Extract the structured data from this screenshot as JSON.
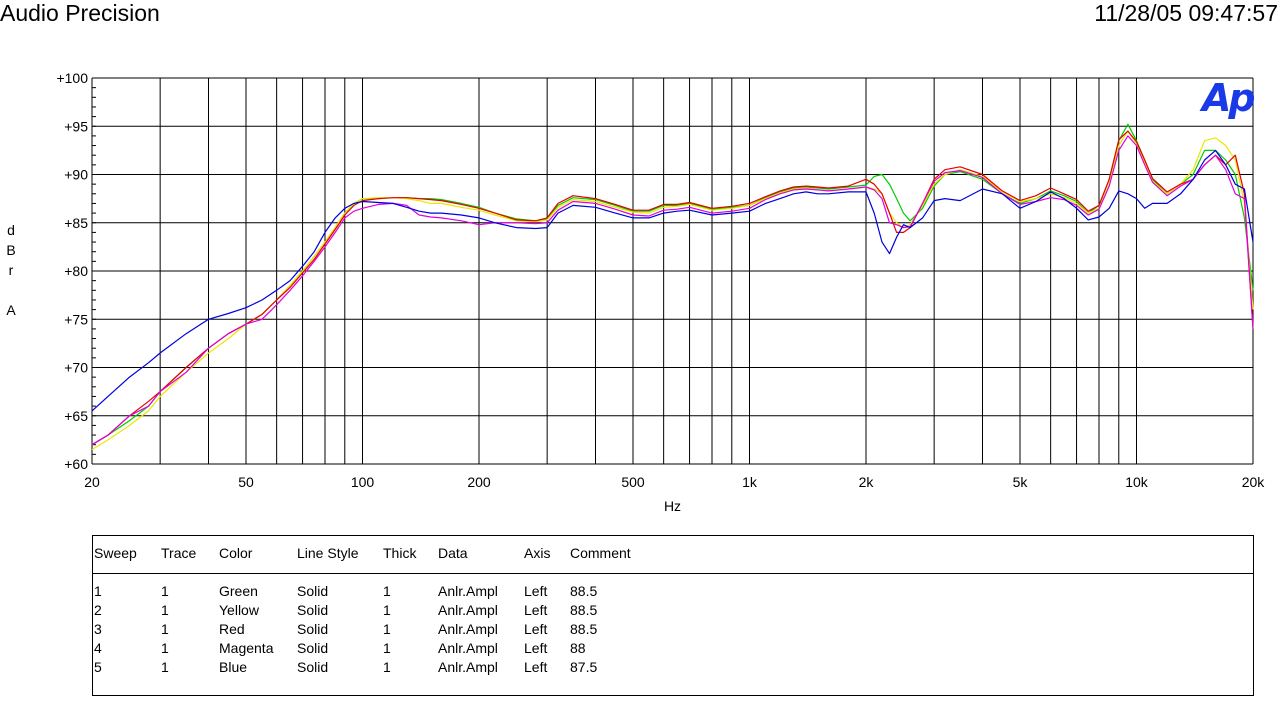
{
  "header": {
    "title": "Audio Precision",
    "timestamp": "11/28/05 09:47:57"
  },
  "chart_data": {
    "type": "line",
    "xlabel": "Hz",
    "ylabel": "dBr A",
    "xscale": "log",
    "xlim": [
      20,
      20000
    ],
    "ylim": [
      60,
      100
    ],
    "grid": true,
    "x_tick_labels": [
      "20",
      "50",
      "100",
      "200",
      "500",
      "1k",
      "2k",
      "5k",
      "10k",
      "20k"
    ],
    "x_tick_values": [
      20,
      50,
      100,
      200,
      500,
      1000,
      2000,
      5000,
      10000,
      20000
    ],
    "y_tick_labels": [
      "+60",
      "+65",
      "+70",
      "+75",
      "+80",
      "+85",
      "+90",
      "+95",
      "+100"
    ],
    "y_tick_values": [
      60,
      65,
      70,
      75,
      80,
      85,
      90,
      95,
      100
    ],
    "x": [
      20,
      22,
      25,
      28,
      30,
      35,
      40,
      45,
      50,
      55,
      60,
      65,
      70,
      75,
      80,
      85,
      90,
      95,
      100,
      110,
      120,
      130,
      140,
      150,
      160,
      180,
      200,
      220,
      250,
      280,
      300,
      320,
      350,
      400,
      450,
      500,
      550,
      600,
      650,
      700,
      800,
      900,
      1000,
      1100,
      1200,
      1300,
      1400,
      1500,
      1600,
      1800,
      2000,
      2100,
      2200,
      2300,
      2400,
      2500,
      2600,
      2800,
      3000,
      3200,
      3500,
      4000,
      4500,
      5000,
      5500,
      6000,
      6500,
      7000,
      7500,
      8000,
      8500,
      9000,
      9500,
      10000,
      10500,
      11000,
      12000,
      13000,
      14000,
      15000,
      16000,
      17000,
      18000,
      19000,
      20000
    ],
    "series": [
      {
        "color": "#00cc00",
        "values": [
          62,
          63,
          64.5,
          66,
          67.5,
          70,
          72,
          73.5,
          74.5,
          75.5,
          77,
          78.5,
          80,
          81.5,
          83,
          84.5,
          86,
          87,
          87.5,
          87.5,
          87.6,
          87.6,
          87.5,
          87.5,
          87.4,
          87,
          86.6,
          86,
          85.4,
          85.2,
          85.4,
          86.8,
          87.6,
          87.4,
          86.8,
          86.2,
          86.2,
          86.8,
          86.8,
          87,
          86.4,
          86.6,
          86.8,
          87.6,
          88.2,
          88.6,
          88.7,
          88.6,
          88.5,
          88.7,
          88.9,
          89.8,
          90,
          89,
          87.5,
          86,
          85.2,
          86.5,
          88.8,
          90,
          90.3,
          89.5,
          88,
          87,
          87.5,
          88.3,
          87.8,
          87.2,
          86,
          86.8,
          89.5,
          93.5,
          95.2,
          93.5,
          91.5,
          89.5,
          88,
          89,
          90,
          92.5,
          92.5,
          91.5,
          90,
          85.5,
          78
        ]
      },
      {
        "color": "#e8e800",
        "values": [
          61.5,
          62.5,
          64,
          65.5,
          67,
          69.5,
          71.5,
          73,
          74.5,
          75.5,
          77,
          78.5,
          80,
          81.5,
          83,
          84.5,
          86,
          87,
          87.5,
          87.6,
          87.6,
          87.5,
          87.3,
          87,
          87,
          86.6,
          86.3,
          85.8,
          85.2,
          85.1,
          85.3,
          86.6,
          87.4,
          87.2,
          86.6,
          86.1,
          86,
          86.6,
          86.7,
          86.9,
          86.3,
          86.5,
          86.8,
          87.5,
          88.1,
          88.5,
          88.6,
          88.4,
          88.3,
          88.5,
          88.7,
          88.5,
          88,
          86,
          85,
          84.5,
          84.8,
          86.8,
          89,
          90,
          90.5,
          89.8,
          88.2,
          87.2,
          87.5,
          88,
          87.6,
          87,
          86,
          86.5,
          89,
          93,
          94.5,
          93.2,
          91.2,
          89.3,
          88,
          89,
          90.5,
          93.5,
          93.8,
          93,
          91.5,
          87,
          76
        ]
      },
      {
        "color": "#e80000",
        "values": [
          62,
          63,
          65,
          66.5,
          67.5,
          70,
          72,
          73.5,
          74.5,
          75.5,
          77,
          78.3,
          79.8,
          81.2,
          82.8,
          84.3,
          85.8,
          86.8,
          87.3,
          87.5,
          87.6,
          87.6,
          87.5,
          87.4,
          87.3,
          86.9,
          86.5,
          86,
          85.3,
          85.2,
          85.5,
          87,
          87.8,
          87.5,
          86.9,
          86.3,
          86.3,
          86.9,
          86.9,
          87.1,
          86.5,
          86.7,
          87,
          87.7,
          88.3,
          88.7,
          88.8,
          88.7,
          88.6,
          88.8,
          89.5,
          89,
          88,
          86,
          84,
          84,
          84.5,
          87,
          89.5,
          90.5,
          90.8,
          90,
          88.3,
          87.3,
          87.8,
          88.6,
          88,
          87.4,
          86.2,
          86.8,
          89.5,
          93.6,
          94.5,
          93.4,
          91.5,
          89.6,
          88.2,
          89,
          89.5,
          91,
          92,
          91,
          92,
          88,
          74
        ]
      },
      {
        "color": "#e000e0",
        "values": [
          62,
          63,
          65,
          66,
          67.5,
          69.5,
          72,
          73.5,
          74.5,
          75,
          76.5,
          78,
          79.5,
          81,
          82.5,
          84,
          85.5,
          86.2,
          86.5,
          86.9,
          87,
          86.8,
          85.8,
          85.6,
          85.5,
          85.2,
          84.8,
          85,
          85,
          84.9,
          85,
          86.3,
          87.2,
          87,
          86.4,
          85.8,
          85.7,
          86.3,
          86.4,
          86.6,
          86,
          86.2,
          86.5,
          87.4,
          88,
          88.4,
          88.5,
          88.4,
          88.3,
          88.5,
          88.7,
          88.4,
          87.5,
          85,
          84.8,
          84.5,
          84.6,
          87,
          89.3,
          90.2,
          90.4,
          89.7,
          88,
          86.9,
          87.2,
          87.6,
          87.4,
          86.8,
          85.8,
          86.4,
          88.8,
          92.5,
          94,
          93,
          91,
          89.2,
          87.8,
          88.8,
          89.5,
          91,
          92,
          90.5,
          88,
          87.5,
          74
        ]
      },
      {
        "color": "#0000e0",
        "values": [
          65.5,
          67,
          69,
          70.5,
          71.5,
          73.5,
          75,
          75.6,
          76.2,
          77,
          78,
          79,
          80.5,
          82,
          84,
          85.5,
          86.5,
          87,
          87.2,
          87.1,
          87,
          86.6,
          86.2,
          86,
          86,
          85.8,
          85.5,
          85,
          84.5,
          84.4,
          84.5,
          86,
          86.8,
          86.6,
          86,
          85.5,
          85.5,
          86,
          86.2,
          86.3,
          85.8,
          86,
          86.2,
          87,
          87.5,
          88,
          88.2,
          88,
          88,
          88.2,
          88.2,
          86,
          83,
          81.8,
          83.5,
          84.8,
          84.5,
          85.5,
          87.3,
          87.5,
          87.3,
          88.5,
          88,
          86.5,
          87.2,
          88.2,
          87.5,
          86.5,
          85.3,
          85.6,
          86.5,
          88.3,
          88,
          87.5,
          86.5,
          87,
          87,
          88,
          89.5,
          91.5,
          92.5,
          91,
          89,
          88.5,
          83
        ]
      }
    ]
  },
  "legend": {
    "headers": [
      "Sweep",
      "Trace",
      "Color",
      "Line Style",
      "Thick",
      "Data",
      "Axis",
      "Comment"
    ],
    "rows": [
      [
        "1",
        "1",
        "Green",
        "Solid",
        "1",
        "Anlr.Ampl",
        "Left",
        "88.5"
      ],
      [
        "2",
        "1",
        "Yellow",
        "Solid",
        "1",
        "Anlr.Ampl",
        "Left",
        "88.5"
      ],
      [
        "3",
        "1",
        "Red",
        "Solid",
        "1",
        "Anlr.Ampl",
        "Left",
        "88.5"
      ],
      [
        "4",
        "1",
        "Magenta",
        "Solid",
        "1",
        "Anlr.Ampl",
        "Left",
        "88"
      ],
      [
        "5",
        "1",
        "Blue",
        "Solid",
        "1",
        "Anlr.Ampl",
        "Left",
        "87.5"
      ]
    ]
  },
  "logo_text": "Ap"
}
